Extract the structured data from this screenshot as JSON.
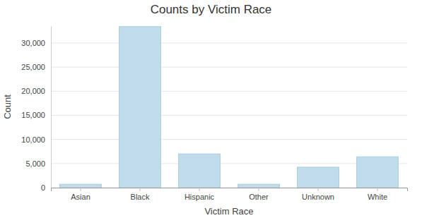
{
  "chart_data": {
    "type": "bar",
    "title": "Counts by Victim Race",
    "x_label": "Victim Race",
    "y_label": "Count",
    "categories": [
      "Asian",
      "Black",
      "Hispanic",
      "Other",
      "Unknown",
      "White"
    ],
    "values": [
      700,
      33400,
      7000,
      700,
      4250,
      6400
    ],
    "color": "#c0dcea",
    "ylim": [
      0,
      33500
    ],
    "yticks": [
      0,
      {
        "value": 5000,
        "label": "5,000"
      },
      {
        "value": 10000,
        "label": "10,000"
      },
      {
        "value": 15000,
        "label": "15,000"
      },
      {
        "value": 20000,
        "label": "20,000"
      },
      {
        "value": 25000,
        "label": "25,000"
      },
      {
        "value": 30000,
        "label": "30,000"
      }
    ],
    "grid": true
  }
}
